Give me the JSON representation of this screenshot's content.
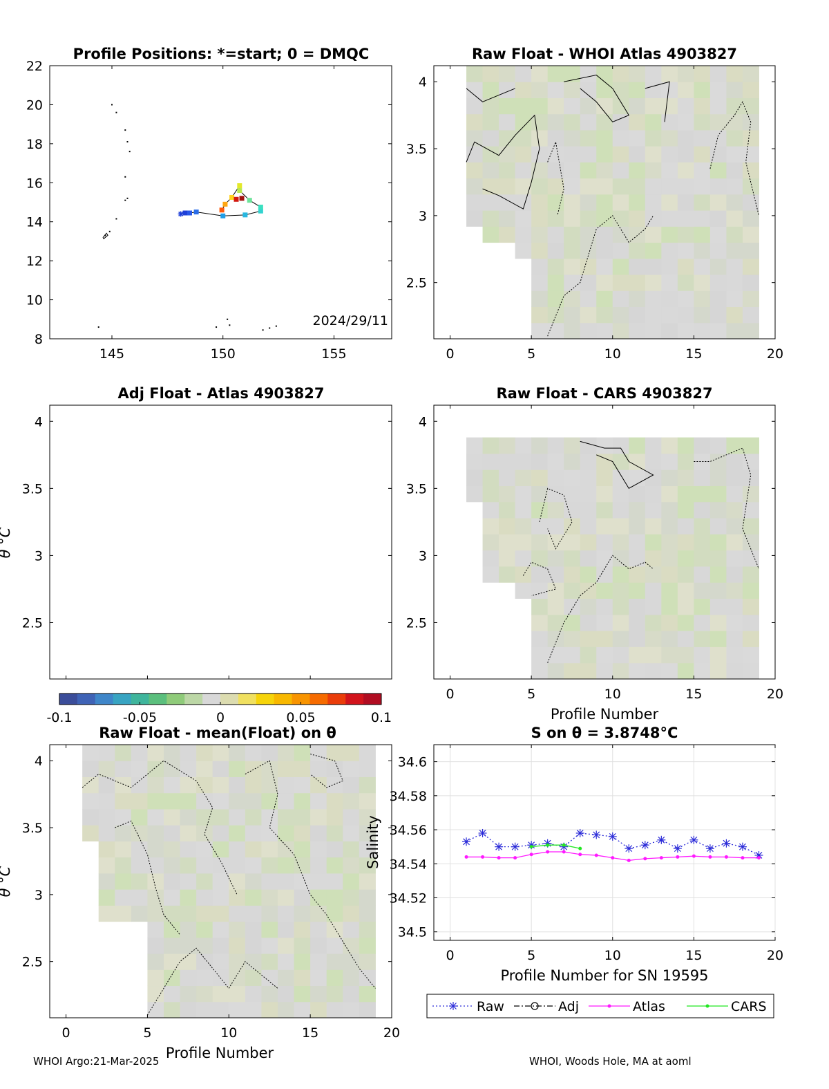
{
  "chart_data": [
    {
      "id": "map",
      "type": "scatter",
      "title": "Profile Positions: *=start; 0 = DMQC",
      "xlim": [
        142.2,
        157.6
      ],
      "ylim": [
        8,
        22
      ],
      "xticks": [
        145,
        150,
        155
      ],
      "yticks": [
        8,
        10,
        12,
        14,
        16,
        18,
        20,
        22
      ],
      "annotation": "2024/29/11",
      "track": [
        {
          "lon": 148.1,
          "lat": 14.4,
          "color": "#1e3fd8"
        },
        {
          "lon": 148.3,
          "lat": 14.45,
          "color": "#1e3fd8"
        },
        {
          "lon": 148.5,
          "lat": 14.45,
          "color": "#2856e8"
        },
        {
          "lon": 148.8,
          "lat": 14.5,
          "color": "#2a6de8"
        },
        {
          "lon": 150.0,
          "lat": 14.3,
          "color": "#1f9ee8"
        },
        {
          "lon": 151.0,
          "lat": 14.35,
          "color": "#28b7e0"
        },
        {
          "lon": 151.7,
          "lat": 14.55,
          "color": "#32d3d0"
        },
        {
          "lon": 151.7,
          "lat": 14.75,
          "color": "#3be0c0"
        },
        {
          "lon": 151.2,
          "lat": 15.1,
          "color": "#6ee39a"
        },
        {
          "lon": 150.75,
          "lat": 15.6,
          "color": "#b8e850"
        },
        {
          "lon": 150.75,
          "lat": 15.85,
          "color": "#e3e829"
        },
        {
          "lon": 150.4,
          "lat": 15.25,
          "color": "#ffd21e"
        },
        {
          "lon": 150.1,
          "lat": 14.9,
          "color": "#ffa612"
        },
        {
          "lon": 149.95,
          "lat": 14.6,
          "color": "#ff5a0a"
        },
        {
          "lon": 150.6,
          "lat": 15.15,
          "color": "#d2180e"
        },
        {
          "lon": 150.85,
          "lat": 15.2,
          "color": "#a2120e"
        }
      ]
    },
    {
      "id": "raw-atlas",
      "type": "heatmap",
      "title": "Raw Float - WHOI Atlas  4903827",
      "xlim": [
        -1,
        20
      ],
      "ylim": [
        2.08,
        4.12
      ],
      "xticks": [
        0,
        5,
        10,
        15,
        20
      ],
      "yticks": [
        2.5,
        3,
        3.5,
        4
      ]
    },
    {
      "id": "adj-atlas",
      "type": "heatmap",
      "title": "Adj Float - Atlas  4903827",
      "ylabel": "θ °C",
      "xlim": [
        -1,
        20
      ],
      "ylim": [
        2.08,
        4.12
      ],
      "yticks": [
        2.5,
        3,
        3.5,
        4
      ]
    },
    {
      "id": "raw-cars",
      "type": "heatmap",
      "title": "Raw Float - CARS  4903827",
      "xlabel": "Profile Number",
      "xlim": [
        -1,
        20
      ],
      "ylim": [
        2.08,
        4.12
      ],
      "xticks": [
        0,
        5,
        10,
        15,
        20
      ],
      "yticks": [
        2.5,
        3,
        3.5,
        4
      ]
    },
    {
      "id": "colorbar",
      "type": "heatmap",
      "range": [
        -0.1,
        0.1
      ],
      "ticks": [
        "-0.1",
        "-0.05",
        "0",
        "0.05",
        "0.1"
      ]
    },
    {
      "id": "raw-mean",
      "type": "heatmap",
      "title": "Raw Float - mean(Float) on θ",
      "ylabel": "θ °C",
      "xlabel": "Profile Number",
      "xlim": [
        -1,
        20
      ],
      "ylim": [
        2.08,
        4.12
      ],
      "xticks": [
        0,
        5,
        10,
        15,
        20
      ],
      "yticks": [
        2.5,
        3,
        3.5,
        4
      ]
    },
    {
      "id": "salinity",
      "type": "line",
      "title": "S on θ = 3.8748°C",
      "xlabel": "Profile Number for SN 19595",
      "ylabel": "Salinity",
      "xlim": [
        -1,
        20
      ],
      "ylim": [
        34.495,
        34.61
      ],
      "xticks": [
        0,
        5,
        10,
        15,
        20
      ],
      "yticks": [
        34.5,
        34.52,
        34.54,
        34.56,
        34.58,
        34.6
      ],
      "grid": true,
      "legend_position": "bottom",
      "series": [
        {
          "name": "Raw",
          "color": "#2b2bd8",
          "marker": "star",
          "dash": "dotted",
          "x": [
            1,
            2,
            3,
            4,
            5,
            6,
            7,
            8,
            9,
            10,
            11,
            12,
            13,
            14,
            15,
            16,
            17,
            18,
            19
          ],
          "values": [
            34.553,
            34.558,
            34.55,
            34.55,
            34.551,
            34.552,
            34.55,
            34.558,
            34.557,
            34.556,
            34.549,
            34.551,
            34.554,
            34.549,
            34.554,
            34.549,
            34.552,
            34.55,
            34.545
          ]
        },
        {
          "name": "Adj",
          "color": "#000000",
          "marker": "circle",
          "dash": "dashdot",
          "x": [],
          "values": []
        },
        {
          "name": "Atlas",
          "color": "#ff19ff",
          "marker": "dot",
          "dash": "solid",
          "x": [
            1,
            2,
            3,
            4,
            5,
            6,
            7,
            8,
            9,
            10,
            11,
            12,
            13,
            14,
            15,
            16,
            17,
            18,
            19
          ],
          "values": [
            34.544,
            34.544,
            34.5435,
            34.5435,
            34.5455,
            34.547,
            34.547,
            34.5455,
            34.545,
            34.5435,
            34.542,
            34.543,
            34.5435,
            34.544,
            34.5445,
            34.544,
            34.544,
            34.5435,
            34.5435
          ]
        },
        {
          "name": "CARS",
          "color": "#22e622",
          "marker": "dot",
          "dash": "solid",
          "x": [
            5,
            6,
            7,
            8
          ],
          "values": [
            34.55,
            34.551,
            34.551,
            34.549
          ]
        }
      ]
    }
  ],
  "footer": {
    "left": "WHOI Argo:21-Mar-2025",
    "right": "WHOI, Woods Hole, MA at aoml"
  }
}
